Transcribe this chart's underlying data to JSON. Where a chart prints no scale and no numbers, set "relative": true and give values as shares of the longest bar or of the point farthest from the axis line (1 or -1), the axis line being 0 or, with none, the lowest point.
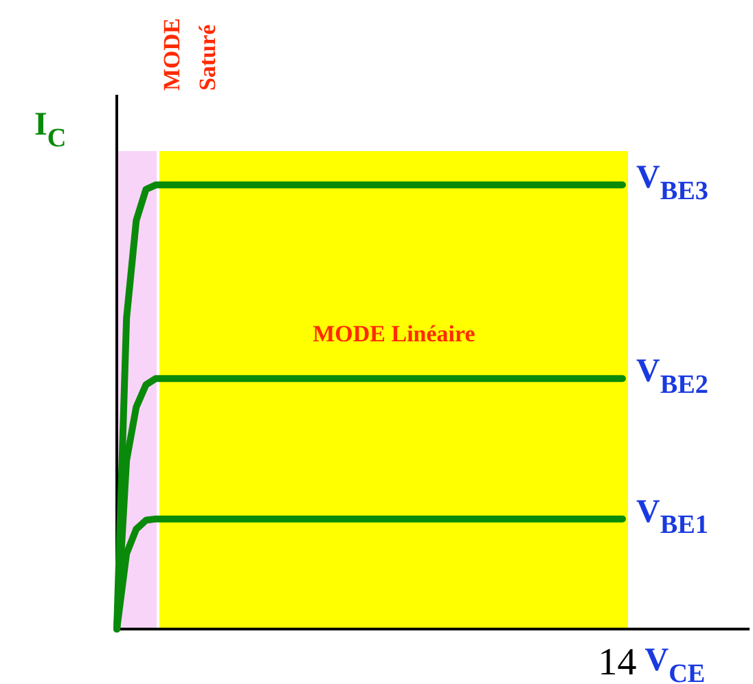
{
  "chart_data": {
    "type": "line",
    "relative": true,
    "xlabel": "V$_{CE}$",
    "ylabel": "I$_{C}$",
    "annotations": [
      "MODE Saturé",
      "MODE Linéaire",
      "14"
    ],
    "grid": false,
    "legend": false,
    "marker": "none",
    "line_style": "solid",
    "categories": [
      null,
      null,
      null,
      null,
      null,
      null,
      null,
      null,
      null,
      null,
      null,
      null,
      null,
      null,
      null,
      null,
      null,
      null,
      null,
      null,
      null,
      null,
      null,
      null,
      null,
      null,
      null,
      null,
      null,
      null,
      null,
      null,
      null,
      null,
      null,
      null,
      null,
      null,
      null,
      null,
      null,
      null,
      null,
      null,
      null,
      null,
      null,
      null,
      null,
      null,
      null,
      null,
      null,
      null,
      null,
      null,
      null,
      null,
      null,
      null,
      null,
      null,
      null,
      null,
      null,
      null
    ],
    "series": [
      {
        "name": "V$_{BE3}$",
        "color": "#0a8a0a",
        "values": [
          0,
          0.7,
          0.92,
          0.99,
          1,
          1,
          1,
          1,
          1,
          1,
          1,
          1,
          1,
          1,
          1,
          1,
          1,
          1,
          1,
          1,
          1,
          1,
          1,
          1,
          1,
          1,
          1,
          1,
          1,
          1,
          1,
          1,
          1,
          1,
          1,
          1,
          1,
          1,
          1,
          1,
          1,
          1,
          1,
          1,
          1,
          1,
          1,
          1,
          1,
          1,
          1,
          1,
          1,
          null,
          null,
          null,
          null,
          null,
          null,
          null,
          null,
          null,
          null,
          null,
          null,
          null
        ]
      },
      {
        "name": "V$_{BE2}$",
        "color": "#0a8a0a",
        "values": [
          0,
          0.38,
          0.5,
          0.55,
          0.564,
          0.564,
          0.564,
          0.564,
          0.564,
          0.564,
          0.564,
          0.564,
          0.564,
          0.564,
          0.564,
          0.564,
          0.564,
          0.564,
          0.564,
          0.564,
          0.564,
          0.564,
          0.564,
          0.564,
          0.564,
          0.564,
          0.564,
          0.564,
          0.564,
          0.564,
          0.564,
          0.564,
          0.564,
          0.564,
          0.564,
          0.564,
          0.564,
          0.564,
          0.564,
          0.564,
          0.564,
          0.564,
          0.564,
          0.564,
          0.564,
          0.564,
          0.564,
          0.564,
          0.564,
          0.564,
          0.564,
          0.564,
          0.564,
          null,
          null,
          null,
          null,
          null,
          null,
          null,
          null,
          null,
          null,
          null,
          null,
          null
        ]
      },
      {
        "name": "V$_{BE1}$",
        "color": "#0a8a0a",
        "values": [
          0,
          0.17,
          0.225,
          0.245,
          0.248,
          0.248,
          0.248,
          0.248,
          0.248,
          0.248,
          0.248,
          0.248,
          0.248,
          0.248,
          0.248,
          0.248,
          0.248,
          0.248,
          0.248,
          0.248,
          0.248,
          0.248,
          0.248,
          0.248,
          0.248,
          0.248,
          0.248,
          0.248,
          0.248,
          0.248,
          0.248,
          0.248,
          0.248,
          0.248,
          0.248,
          0.248,
          0.248,
          0.248,
          0.248,
          0.248,
          0.248,
          0.248,
          0.248,
          0.248,
          0.248,
          0.248,
          0.248,
          0.248,
          0.248,
          0.248,
          0.248,
          0.248,
          0.248,
          null,
          null,
          null,
          null,
          null,
          null,
          null,
          null,
          null,
          null,
          null,
          null,
          null
        ]
      }
    ]
  }
}
